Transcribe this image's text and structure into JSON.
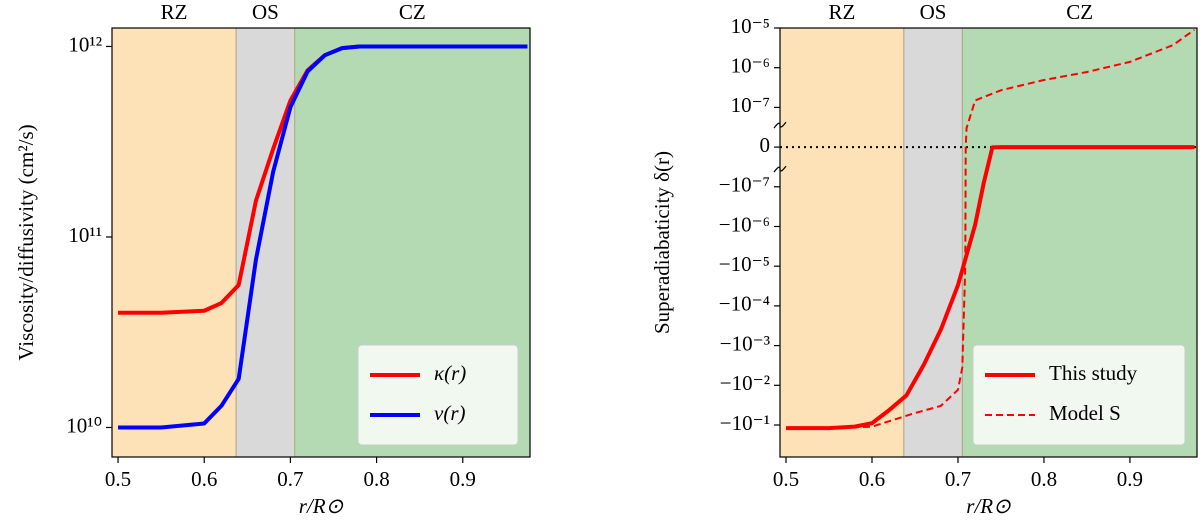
{
  "chart_data": [
    {
      "type": "line",
      "ylabel": "Viscosity/diffusivity (cm²/s)",
      "xlabel": "r/R⊙",
      "xlim": [
        0.493,
        0.978
      ],
      "xticks": [
        0.5,
        0.6,
        0.7,
        0.8,
        0.9
      ],
      "ylim": [
        7000000000.0,
        1250000000000.0
      ],
      "yscale": "log",
      "yticks": [
        {
          "value": 10000000000.0,
          "label": "10¹⁰"
        },
        {
          "value": 100000000000.0,
          "label": "10¹¹"
        },
        {
          "value": 1000000000000.0,
          "label": "10¹²"
        }
      ],
      "regions": [
        {
          "label": "RZ",
          "range": [
            0.493,
            0.637
          ],
          "color": "#fde2b8"
        },
        {
          "label": "OS",
          "range": [
            0.637,
            0.705
          ],
          "color": "#d9d9d9"
        },
        {
          "label": "CZ",
          "range": [
            0.705,
            0.978
          ],
          "color": "#b4dab4"
        }
      ],
      "legend": "lower right",
      "series": [
        {
          "name": "κ(r)",
          "color": "#ff0000",
          "linestyle": "solid",
          "x": [
            0.5,
            0.55,
            0.6,
            0.62,
            0.64,
            0.66,
            0.68,
            0.7,
            0.72,
            0.74,
            0.76,
            0.78,
            0.8,
            0.85,
            0.9,
            0.95,
            0.975
          ],
          "values": [
            40000000000.0,
            40000000000.0,
            41000000000.0,
            45000000000.0,
            56000000000.0,
            155000000000.0,
            290000000000.0,
            520000000000.0,
            750000000000.0,
            900000000000.0,
            980000000000.0,
            1000000000000.0,
            1000000000000.0,
            1000000000000.0,
            1000000000000.0,
            1000000000000.0,
            1000000000000.0
          ]
        },
        {
          "name": "ν(r)",
          "color": "#0000ff",
          "linestyle": "solid",
          "x": [
            0.5,
            0.55,
            0.6,
            0.62,
            0.64,
            0.66,
            0.68,
            0.7,
            0.72,
            0.74,
            0.76,
            0.78,
            0.8,
            0.85,
            0.9,
            0.95,
            0.975
          ],
          "values": [
            10000000000.0,
            10000000000.0,
            10500000000.0,
            13000000000.0,
            18000000000.0,
            76000000000.0,
            220000000000.0,
            480000000000.0,
            740000000000.0,
            900000000000.0,
            980000000000.0,
            1000000000000.0,
            1000000000000.0,
            1000000000000.0,
            1000000000000.0,
            1000000000000.0,
            1000000000000.0
          ]
        }
      ]
    },
    {
      "type": "line",
      "ylabel": "Superadiabaticity δ(r)",
      "xlabel": "r/R⊙",
      "xlim": [
        0.493,
        0.978
      ],
      "xticks": [
        0.5,
        0.6,
        0.7,
        0.8,
        0.9
      ],
      "ylim": [
        -0.64,
        1e-05
      ],
      "yscale": "symlog",
      "yticks": [
        {
          "value": 1e-05,
          "label": "10⁻⁵"
        },
        {
          "value": 1e-06,
          "label": "10⁻⁶"
        },
        {
          "value": 1e-07,
          "label": "10⁻⁷"
        },
        0,
        {
          "value": -1e-07,
          "label": "−10⁻⁷"
        },
        {
          "value": -1e-06,
          "label": "−10⁻⁶"
        },
        {
          "value": -1e-05,
          "label": "−10⁻⁵"
        },
        {
          "value": -0.0001,
          "label": "−10⁻⁴"
        },
        {
          "value": -0.001,
          "label": "−10⁻³"
        },
        {
          "value": -0.01,
          "label": "−10⁻²"
        },
        {
          "value": -0.1,
          "label": "−10⁻¹"
        }
      ],
      "zero_line": true,
      "regions": [
        {
          "label": "RZ",
          "range": [
            0.493,
            0.637
          ],
          "color": "#fde2b8"
        },
        {
          "label": "OS",
          "range": [
            0.637,
            0.705
          ],
          "color": "#d9d9d9"
        },
        {
          "label": "CZ",
          "range": [
            0.705,
            0.978
          ],
          "color": "#b4dab4"
        }
      ],
      "legend": "lower right",
      "series": [
        {
          "name": "This study",
          "color": "#ff0000",
          "linestyle": "solid",
          "x": [
            0.5,
            0.55,
            0.58,
            0.6,
            0.62,
            0.64,
            0.66,
            0.68,
            0.7,
            0.71,
            0.72,
            0.73,
            0.74,
            0.75,
            0.8,
            0.85,
            0.9,
            0.95,
            0.975
          ],
          "values": [
            -0.12,
            -0.12,
            -0.11,
            -0.09,
            -0.042,
            -0.018,
            -0.0031,
            -0.0004,
            -3e-05,
            -5.2e-06,
            -9e-07,
            -9e-08,
            -8e-10,
            0,
            0,
            0,
            0,
            0,
            0
          ]
        },
        {
          "name": "Model S",
          "color": "#ff0000",
          "linestyle": "dashed",
          "x": [
            0.5,
            0.55,
            0.6,
            0.65,
            0.68,
            0.7,
            0.705,
            0.7085,
            0.709,
            0.71,
            0.72,
            0.75,
            0.8,
            0.85,
            0.9,
            0.95,
            0.975
          ],
          "values": [
            -0.12,
            -0.12,
            -0.11,
            -0.05,
            -0.033,
            -0.013,
            -0.0036,
            -1e-05,
            0,
            4.8e-08,
            1.5e-07,
            2.7e-07,
            4.9e-07,
            7.8e-07,
            1.4e-06,
            3.7e-06,
            9e-06
          ]
        }
      ]
    }
  ]
}
